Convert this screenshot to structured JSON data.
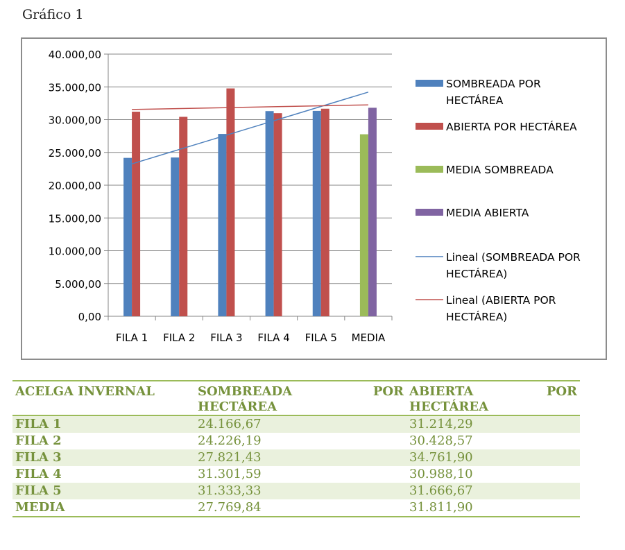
{
  "caption": "Gráfico 1",
  "chart_data": {
    "type": "bar",
    "categories": [
      "FILA 1",
      "FILA 2",
      "FILA 3",
      "FILA 4",
      "FILA 5",
      "MEDIA"
    ],
    "yticks": [
      "0,00",
      "5.000,00",
      "10.000,00",
      "15.000,00",
      "20.000,00",
      "25.000,00",
      "30.000,00",
      "35.000,00",
      "40.000,00"
    ],
    "ylim": [
      0,
      40000
    ],
    "series": [
      {
        "name": "SOMBREADA POR HECTÁREA",
        "color": "#4f81bd",
        "values": [
          24166.67,
          24226.19,
          27821.43,
          31301.59,
          31333.33,
          null
        ]
      },
      {
        "name": "ABIERTA POR HECTÁREA",
        "color": "#c0504d",
        "values": [
          31214.29,
          30428.57,
          34761.9,
          30988.1,
          31666.67,
          null
        ]
      },
      {
        "name": "MEDIA SOMBREADA",
        "color": "#9bbb59",
        "values": [
          null,
          null,
          null,
          null,
          null,
          27769.84
        ]
      },
      {
        "name": "MEDIA ABIERTA",
        "color": "#8064a2",
        "values": [
          null,
          null,
          null,
          null,
          null,
          31811.9
        ]
      }
    ],
    "trendlines": [
      {
        "name": "Lineal (SOMBREADA POR HECTÁREA)",
        "color": "#4f81bd",
        "from": {
          "category": "FILA 1",
          "value": 23250
        },
        "to": {
          "category": "MEDIA",
          "value": 34200
        }
      },
      {
        "name": "Lineal (ABIERTA POR HECTÁREA)",
        "color": "#c0504d",
        "from": {
          "category": "FILA 1",
          "value": 31550
        },
        "to": {
          "category": "MEDIA",
          "value": 32250
        }
      }
    ],
    "legend": [
      {
        "label": [
          "SOMBREADA POR",
          "HECTÁREA"
        ],
        "kind": "bar",
        "color": "#4f81bd"
      },
      {
        "label": [
          "ABIERTA POR HECTÁREA"
        ],
        "kind": "bar",
        "color": "#c0504d"
      },
      {
        "label": [
          "MEDIA SOMBREADA"
        ],
        "kind": "bar",
        "color": "#9bbb59"
      },
      {
        "label": [
          "MEDIA ABIERTA"
        ],
        "kind": "bar",
        "color": "#8064a2"
      },
      {
        "label": [
          "Lineal (SOMBREADA POR",
          "HECTÁREA)"
        ],
        "kind": "line",
        "color": "#4f81bd"
      },
      {
        "label": [
          "Lineal (ABIERTA POR",
          "HECTÁREA)"
        ],
        "kind": "line",
        "color": "#c0504d"
      }
    ],
    "legend_position": "right"
  },
  "table": {
    "headers": {
      "col1": "ACELGA INVERNAL",
      "col2_a": "SOMBREADA",
      "col2_b": "POR",
      "col2_c": "HECTÁREA",
      "col3_a": "ABIERTA",
      "col3_b": "POR",
      "col3_c": "HECTÁREA"
    },
    "rows": [
      {
        "label": "FILA 1",
        "sombreada": "24.166,67",
        "abierta": "31.214,29"
      },
      {
        "label": "FILA 2",
        "sombreada": "24.226,19",
        "abierta": "30.428,57"
      },
      {
        "label": "FILA 3",
        "sombreada": "27.821,43",
        "abierta": "34.761,90"
      },
      {
        "label": "FILA 4",
        "sombreada": "31.301,59",
        "abierta": "30.988,10"
      },
      {
        "label": "FILA 5",
        "sombreada": "31.333,33",
        "abierta": "31.666,67"
      },
      {
        "label": "MEDIA",
        "sombreada": "27.769,84",
        "abierta": "31.811,90"
      }
    ]
  }
}
